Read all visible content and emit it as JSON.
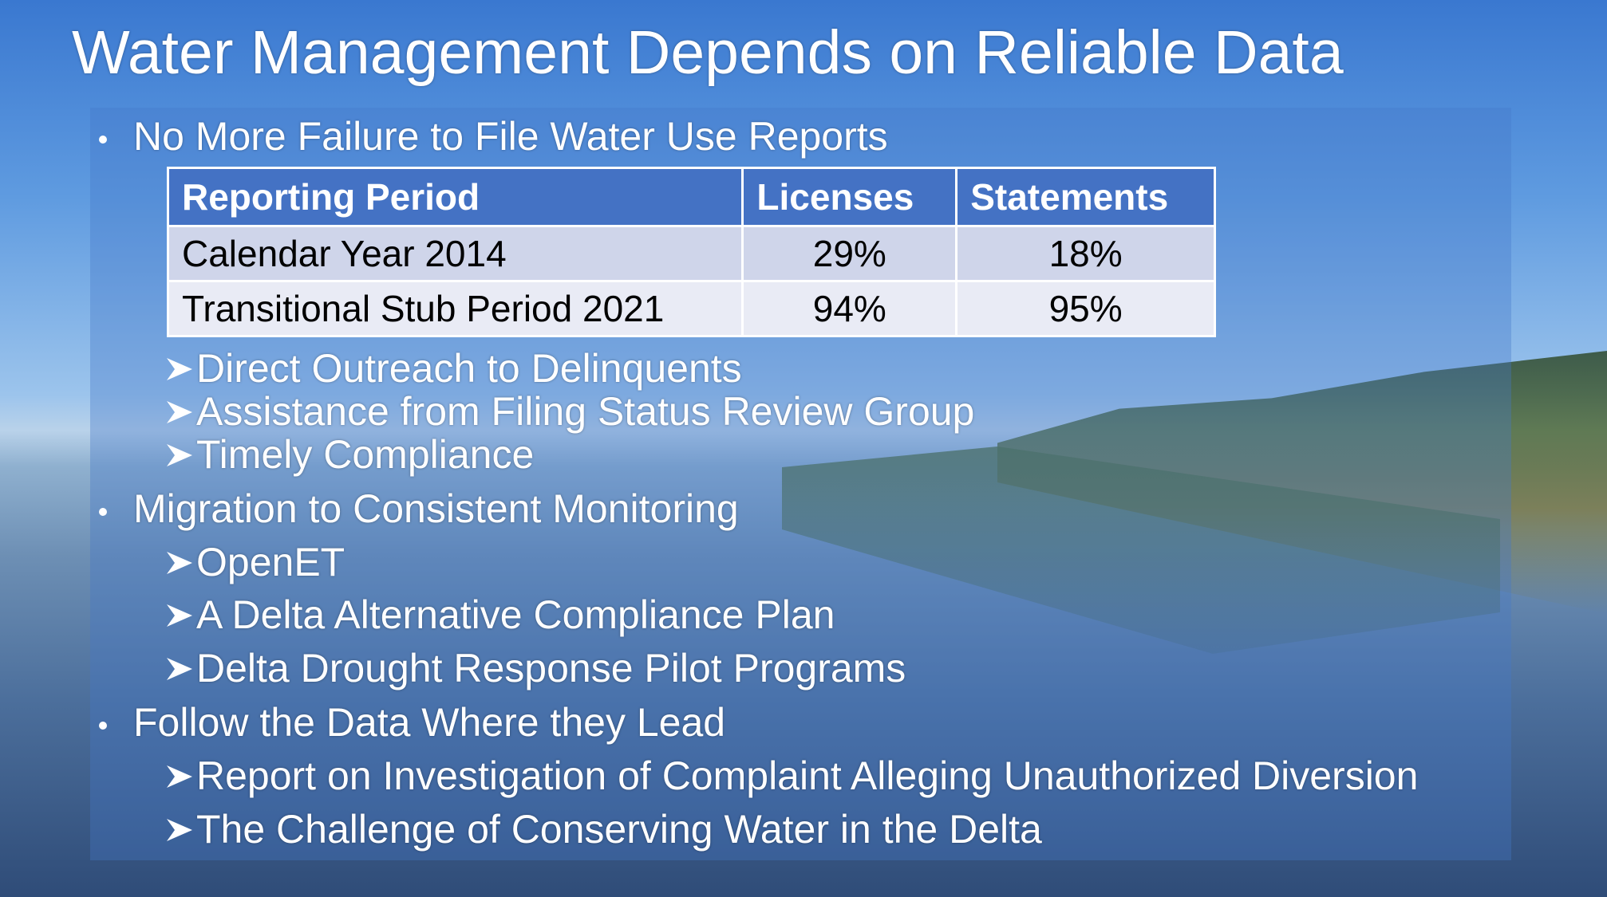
{
  "title": "Water Management Depends on Reliable Data",
  "table": {
    "header": [
      "Reporting Period",
      "Licenses",
      "Statements"
    ],
    "rows": [
      [
        "Calendar Year 2014",
        "29%",
        "18%"
      ],
      [
        "Transitional Stub Period 2021",
        "94%",
        "95%"
      ]
    ]
  },
  "bullets": [
    {
      "text": "No More Failure to File Water Use Reports",
      "items": [
        "Direct Outreach to Delinquents",
        "Assistance from Filing Status Review Group",
        "Timely Compliance"
      ]
    },
    {
      "text": "Migration to Consistent Monitoring",
      "items": [
        "OpenET",
        "A Delta Alternative Compliance Plan",
        "Delta Drought Response Pilot Programs"
      ]
    },
    {
      "text": "Follow the Data Where they Lead",
      "items": [
        "Report on Investigation of Complaint Alleging Unauthorized Diversion",
        "The Challenge of Conserving Water in the Delta"
      ]
    }
  ]
}
